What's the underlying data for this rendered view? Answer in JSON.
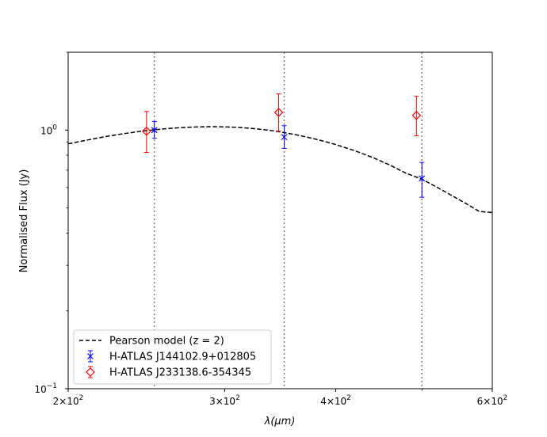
{
  "chart_data": {
    "type": "scatter",
    "title": "",
    "xlabel_prefix": "λ",
    "xlabel_unit": "(μm)",
    "ylabel": "Normalised Flux (Jy)",
    "xscale": "log",
    "yscale": "log",
    "xlim": [
      200,
      600
    ],
    "ylim": [
      0.1,
      2.0
    ],
    "x_ticks": [
      {
        "value": 200,
        "mantissa": "2",
        "base": "×10",
        "exp": "2"
      },
      {
        "value": 300,
        "mantissa": "3",
        "base": "×10",
        "exp": "2"
      },
      {
        "value": 400,
        "mantissa": "4",
        "base": "×10",
        "exp": "2"
      },
      {
        "value": 600,
        "mantissa": "6",
        "base": "×10",
        "exp": "2"
      }
    ],
    "y_ticks": [
      {
        "value": 0.1,
        "base": "10",
        "exp": "−1"
      },
      {
        "value": 1.0,
        "base": "10",
        "exp": "0"
      }
    ],
    "vlines": [
      250,
      350,
      500
    ],
    "model": {
      "name": "Pearson model (z = 2)",
      "x": [
        200,
        210,
        220,
        230,
        240,
        250,
        260,
        270,
        280,
        290,
        300,
        310,
        320,
        330,
        340,
        350,
        360,
        370,
        380,
        390,
        400,
        420,
        440,
        460,
        480,
        500,
        520,
        540,
        560,
        580,
        600
      ],
      "y": [
        0.885,
        0.915,
        0.943,
        0.967,
        0.987,
        1.003,
        1.015,
        1.024,
        1.029,
        1.031,
        1.029,
        1.025,
        1.017,
        1.006,
        0.994,
        0.978,
        0.961,
        0.942,
        0.922,
        0.901,
        0.879,
        0.833,
        0.784,
        0.733,
        0.681,
        0.646,
        0.601,
        0.559,
        0.521,
        0.485,
        0.48
      ]
    },
    "series": [
      {
        "name": "H-ATLAS J144102.9+012805",
        "marker": "x",
        "color": "#0000ff",
        "x": [
          250,
          350,
          500
        ],
        "y": [
          1.0,
          0.94,
          0.65
        ],
        "yerr_low": [
          0.93,
          0.85,
          0.55
        ],
        "yerr_high": [
          1.08,
          1.04,
          0.75
        ]
      },
      {
        "name": "H-ATLAS J233138.6-354345",
        "marker": "diamond",
        "color": "#ff0000",
        "x": [
          245,
          345,
          493
        ],
        "y": [
          0.99,
          1.17,
          1.14
        ],
        "yerr_low": [
          0.82,
          0.99,
          0.95
        ],
        "yerr_high": [
          1.18,
          1.38,
          1.35
        ]
      }
    ],
    "legend_position": "lower-left"
  }
}
